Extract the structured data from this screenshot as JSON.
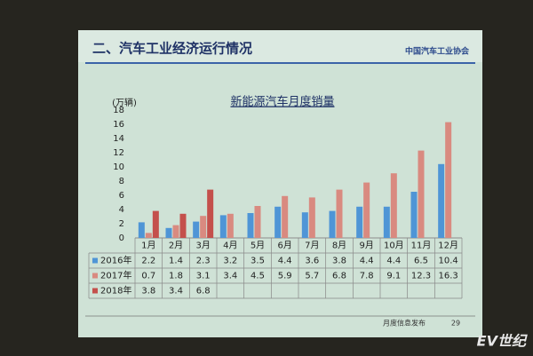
{
  "slide": {
    "heading": "二、汽车工业经济运行情况",
    "logo": "中国汽车工业协会",
    "footer": "月度信息发布",
    "page": "29",
    "watermark": "EV世纪"
  },
  "chart_data": {
    "type": "bar",
    "title": "新能源汽车月度销量",
    "y_label": "(万辆)",
    "categories": [
      "1月",
      "2月",
      "3月",
      "4月",
      "5月",
      "6月",
      "7月",
      "8月",
      "9月",
      "10月",
      "11月",
      "12月"
    ],
    "series": [
      {
        "name": "2016年",
        "color": "#4f95d6",
        "values": [
          2.2,
          1.4,
          2.3,
          3.2,
          3.5,
          4.4,
          3.6,
          3.8,
          4.4,
          4.4,
          6.5,
          10.4
        ]
      },
      {
        "name": "2017年",
        "color": "#d98a80",
        "values": [
          0.7,
          1.8,
          3.1,
          3.4,
          4.5,
          5.9,
          5.7,
          6.8,
          7.8,
          9.1,
          12.3,
          16.3
        ]
      },
      {
        "name": "2018年",
        "color": "#c4504c",
        "values": [
          3.8,
          3.4,
          6.8,
          null,
          null,
          null,
          null,
          null,
          null,
          null,
          null,
          null
        ]
      }
    ],
    "ylim": [
      0,
      18
    ],
    "yticks": [
      0,
      2,
      4,
      6,
      8,
      10,
      12,
      14,
      16,
      18
    ],
    "grid": false
  }
}
